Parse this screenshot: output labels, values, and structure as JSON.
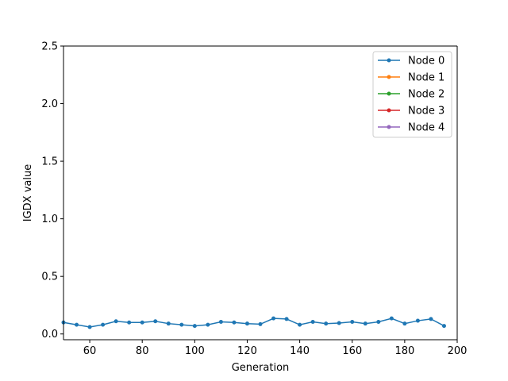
{
  "chart_data": {
    "type": "line",
    "xlabel": "Generation",
    "ylabel": "IGDX value",
    "xlim": [
      50,
      200
    ],
    "ylim": [
      -0.05,
      2.5
    ],
    "xticks": [
      60,
      80,
      100,
      120,
      140,
      160,
      180,
      200
    ],
    "yticks": [
      0.0,
      0.5,
      1.0,
      1.5,
      2.0,
      2.5
    ],
    "xtick_labels": [
      "60",
      "80",
      "100",
      "120",
      "140",
      "160",
      "180",
      "200"
    ],
    "ytick_labels": [
      "0.0",
      "0.5",
      "1.0",
      "1.5",
      "2.0",
      "2.5"
    ],
    "grid": false,
    "legend_position": "top-right",
    "series": [
      {
        "name": "Node 0",
        "color": "#1f77b4",
        "x": [
          50,
          55,
          60,
          65,
          70,
          75,
          80,
          85,
          90,
          95,
          100,
          105,
          110,
          115,
          120,
          125,
          130,
          135,
          140,
          145,
          150,
          155,
          160,
          165,
          170,
          175,
          180,
          185,
          190,
          195
        ],
        "y": [
          0.1,
          0.08,
          0.06,
          0.08,
          0.11,
          0.1,
          0.1,
          0.11,
          0.09,
          0.08,
          0.07,
          0.08,
          0.105,
          0.1,
          0.09,
          0.085,
          0.135,
          0.13,
          0.08,
          0.105,
          0.09,
          0.095,
          0.105,
          0.09,
          0.105,
          0.135,
          0.09,
          0.115,
          0.13,
          0.07
        ]
      },
      {
        "name": "Node 1",
        "color": "#ff7f0e",
        "x": [],
        "y": []
      },
      {
        "name": "Node 2",
        "color": "#2ca02c",
        "x": [],
        "y": []
      },
      {
        "name": "Node 3",
        "color": "#d62728",
        "x": [],
        "y": []
      },
      {
        "name": "Node 4",
        "color": "#9467bd",
        "x": [],
        "y": []
      }
    ]
  }
}
